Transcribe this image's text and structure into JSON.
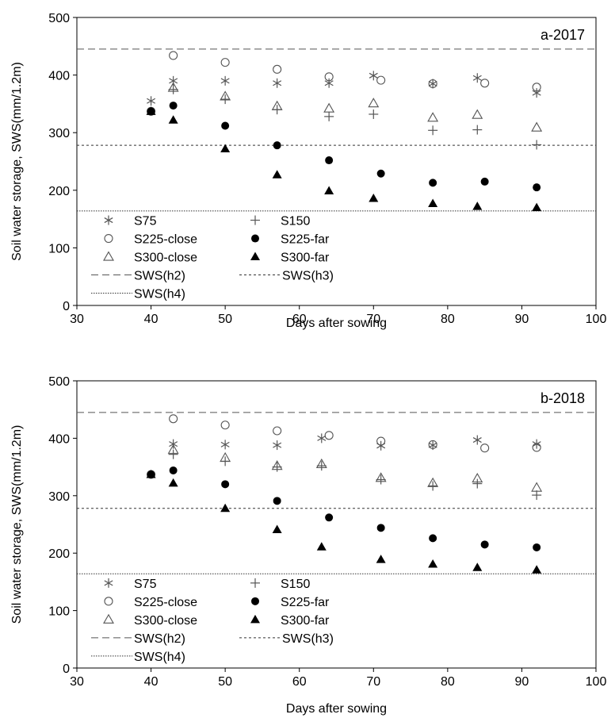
{
  "chart_data": [
    {
      "type": "scatter",
      "panel_label": "a-2017",
      "xlabel": "Days after sowing",
      "ylabel": "Soil water storage, SWS(mm/1.2m)",
      "xlim": [
        30,
        100
      ],
      "ylim": [
        0,
        500
      ],
      "xticks": [
        30,
        40,
        50,
        60,
        70,
        80,
        90,
        100
      ],
      "yticks": [
        0,
        100,
        200,
        300,
        400,
        500
      ],
      "grid": false,
      "legend_position": "bottom-left",
      "series": [
        {
          "name": "S75",
          "marker": "asterisk",
          "color": "#555555",
          "x": [
            40,
            43,
            50,
            57,
            64,
            70,
            78,
            84,
            92
          ],
          "y": [
            355,
            390,
            390,
            386,
            386,
            399,
            385,
            395,
            369
          ]
        },
        {
          "name": "S150",
          "marker": "plus",
          "color": "#555555",
          "x": [
            43,
            50,
            57,
            64,
            70,
            78,
            84,
            92
          ],
          "y": [
            375,
            358,
            340,
            328,
            332,
            304,
            305,
            279
          ]
        },
        {
          "name": "S225-close",
          "marker": "circle-open",
          "color": "#555555",
          "x": [
            40,
            43,
            50,
            57,
            64,
            71,
            78,
            85,
            92
          ],
          "y": [
            337,
            434,
            422,
            410,
            397,
            391,
            385,
            386,
            379
          ]
        },
        {
          "name": "S225-far",
          "marker": "circle-filled",
          "color": "#000000",
          "x": [
            40,
            43,
            50,
            57,
            64,
            71,
            78,
            85,
            92
          ],
          "y": [
            337,
            347,
            312,
            278,
            252,
            229,
            213,
            215,
            205
          ]
        },
        {
          "name": "S300-close",
          "marker": "triangle-open",
          "color": "#555555",
          "x": [
            43,
            50,
            57,
            64,
            70,
            78,
            84,
            92
          ],
          "y": [
            378,
            363,
            346,
            342,
            351,
            326,
            331,
            309
          ]
        },
        {
          "name": "S300-far",
          "marker": "triangle-filled",
          "color": "#000000",
          "x": [
            40,
            43,
            50,
            57,
            64,
            70,
            78,
            84,
            92
          ],
          "y": [
            337,
            322,
            272,
            227,
            199,
            186,
            177,
            172,
            170
          ]
        }
      ],
      "reference_lines": [
        {
          "name": "SWS(h2)",
          "y": 445,
          "style": "long-dash"
        },
        {
          "name": "SWS(h3)",
          "y": 278,
          "style": "short-dash"
        },
        {
          "name": "SWS(h4)",
          "y": 164,
          "style": "dotted"
        }
      ]
    },
    {
      "type": "scatter",
      "panel_label": "b-2018",
      "xlabel": "Days after sowing",
      "ylabel": "Soil water storage, SWS(mm/1.2m)",
      "xlim": [
        30,
        100
      ],
      "ylim": [
        0,
        500
      ],
      "xticks": [
        30,
        40,
        50,
        60,
        70,
        80,
        90,
        100
      ],
      "yticks": [
        0,
        100,
        200,
        300,
        400,
        500
      ],
      "grid": false,
      "legend_position": "bottom-left",
      "series": [
        {
          "name": "S75",
          "marker": "asterisk",
          "color": "#555555",
          "x": [
            43,
            50,
            57,
            63,
            71,
            78,
            84,
            92
          ],
          "y": [
            390,
            389,
            388,
            400,
            387,
            388,
            397,
            390
          ]
        },
        {
          "name": "S150",
          "marker": "plus",
          "color": "#555555",
          "x": [
            43,
            50,
            57,
            63,
            71,
            78,
            84,
            92
          ],
          "y": [
            372,
            360,
            350,
            352,
            328,
            317,
            321,
            301
          ]
        },
        {
          "name": "S225-close",
          "marker": "circle-open",
          "color": "#555555",
          "x": [
            40,
            43,
            50,
            57,
            64,
            71,
            78,
            85,
            92
          ],
          "y": [
            337,
            434,
            423,
            413,
            405,
            395,
            389,
            383,
            384
          ]
        },
        {
          "name": "S225-far",
          "marker": "circle-filled",
          "color": "#000000",
          "x": [
            40,
            43,
            50,
            57,
            64,
            71,
            78,
            85,
            92
          ],
          "y": [
            337,
            344,
            320,
            291,
            262,
            244,
            226,
            215,
            210
          ]
        },
        {
          "name": "S300-close",
          "marker": "triangle-open",
          "color": "#555555",
          "x": [
            43,
            50,
            57,
            63,
            71,
            78,
            84,
            92
          ],
          "y": [
            380,
            366,
            352,
            355,
            331,
            322,
            330,
            314
          ]
        },
        {
          "name": "S300-far",
          "marker": "triangle-filled",
          "color": "#000000",
          "x": [
            40,
            43,
            50,
            57,
            63,
            71,
            78,
            84,
            92
          ],
          "y": [
            337,
            322,
            278,
            241,
            211,
            189,
            181,
            175,
            171
          ]
        }
      ],
      "reference_lines": [
        {
          "name": "SWS(h2)",
          "y": 445,
          "style": "long-dash"
        },
        {
          "name": "SWS(h3)",
          "y": 278,
          "style": "short-dash"
        },
        {
          "name": "SWS(h4)",
          "y": 164,
          "style": "dotted"
        }
      ]
    }
  ]
}
